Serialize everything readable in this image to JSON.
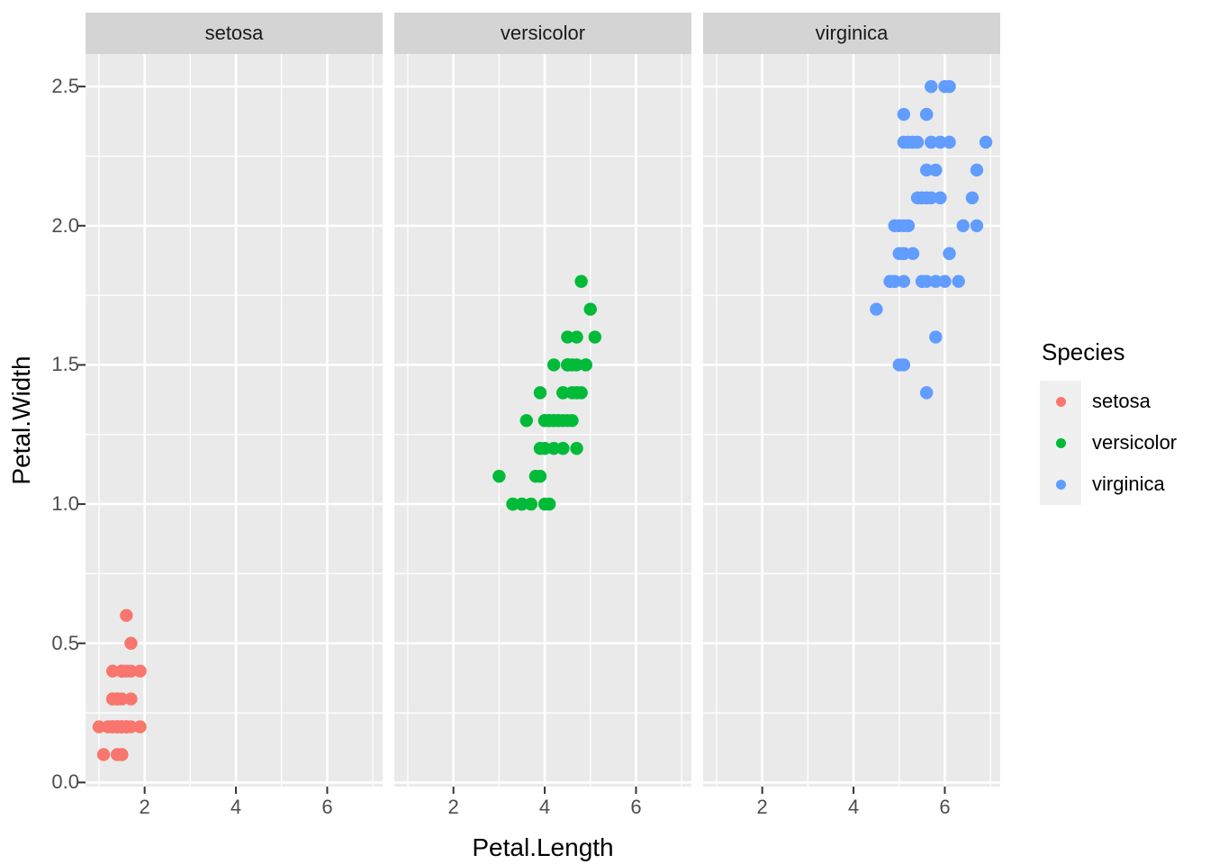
{
  "figure": {
    "background": "#FFFFFF",
    "panel_background": "#EAEAEA",
    "strip_background": "#D4D4D4",
    "gridline_color": "#FFFFFF",
    "axis_tick_color": "#333333",
    "tick_label_color": "#4D4D4D"
  },
  "chart_data": {
    "type": "scatter",
    "title": "",
    "xlabel": "Petal.Length",
    "ylabel": "Petal.Width",
    "facets": [
      "setosa",
      "versicolor",
      "virginica"
    ],
    "x_tick_values": [
      2,
      4,
      6
    ],
    "x_tick_labels": [
      "2",
      "4",
      "6"
    ],
    "x_minor_ticks": [
      1,
      3,
      5,
      7
    ],
    "y_tick_values": [
      0,
      0.5,
      1,
      1.5,
      2,
      2.5
    ],
    "y_tick_labels": [
      "0.0",
      "0.5",
      "1.0",
      "1.5",
      "2.0",
      "2.5"
    ],
    "y_minor_ticks": [
      0.25,
      0.75,
      1.25,
      1.75,
      2.25
    ],
    "x_range": [
      0.705,
      7.195
    ],
    "y_range": [
      -0.02,
      2.62
    ],
    "grid": true,
    "legend": {
      "title": "Species",
      "position": "right",
      "entries": [
        {
          "label": "setosa",
          "color": "#F8766D"
        },
        {
          "label": "versicolor",
          "color": "#00BA38"
        },
        {
          "label": "virginica",
          "color": "#619CFF"
        }
      ]
    },
    "series": [
      {
        "name": "setosa",
        "color": "#F8766D",
        "facet": "setosa",
        "points": [
          [
            1.4,
            0.2
          ],
          [
            1.4,
            0.2
          ],
          [
            1.3,
            0.2
          ],
          [
            1.5,
            0.2
          ],
          [
            1.4,
            0.2
          ],
          [
            1.7,
            0.4
          ],
          [
            1.4,
            0.3
          ],
          [
            1.5,
            0.2
          ],
          [
            1.4,
            0.2
          ],
          [
            1.5,
            0.1
          ],
          [
            1.5,
            0.2
          ],
          [
            1.6,
            0.2
          ],
          [
            1.4,
            0.1
          ],
          [
            1.1,
            0.1
          ],
          [
            1.2,
            0.2
          ],
          [
            1.5,
            0.4
          ],
          [
            1.3,
            0.4
          ],
          [
            1.4,
            0.3
          ],
          [
            1.7,
            0.3
          ],
          [
            1.5,
            0.3
          ],
          [
            1.7,
            0.2
          ],
          [
            1.5,
            0.4
          ],
          [
            1.0,
            0.2
          ],
          [
            1.7,
            0.5
          ],
          [
            1.9,
            0.2
          ],
          [
            1.6,
            0.2
          ],
          [
            1.6,
            0.4
          ],
          [
            1.5,
            0.2
          ],
          [
            1.4,
            0.2
          ],
          [
            1.6,
            0.2
          ],
          [
            1.6,
            0.2
          ],
          [
            1.5,
            0.4
          ],
          [
            1.5,
            0.1
          ],
          [
            1.4,
            0.2
          ],
          [
            1.5,
            0.2
          ],
          [
            1.2,
            0.2
          ],
          [
            1.3,
            0.2
          ],
          [
            1.4,
            0.1
          ],
          [
            1.3,
            0.2
          ],
          [
            1.5,
            0.2
          ],
          [
            1.3,
            0.3
          ],
          [
            1.3,
            0.3
          ],
          [
            1.3,
            0.2
          ],
          [
            1.6,
            0.6
          ],
          [
            1.9,
            0.4
          ],
          [
            1.4,
            0.3
          ],
          [
            1.6,
            0.2
          ],
          [
            1.4,
            0.2
          ],
          [
            1.5,
            0.2
          ],
          [
            1.4,
            0.2
          ]
        ]
      },
      {
        "name": "versicolor",
        "color": "#00BA38",
        "facet": "versicolor",
        "points": [
          [
            4.7,
            1.4
          ],
          [
            4.5,
            1.5
          ],
          [
            4.9,
            1.5
          ],
          [
            4.0,
            1.3
          ],
          [
            4.6,
            1.5
          ],
          [
            4.5,
            1.3
          ],
          [
            4.7,
            1.6
          ],
          [
            3.3,
            1.0
          ],
          [
            4.6,
            1.3
          ],
          [
            3.9,
            1.4
          ],
          [
            3.5,
            1.0
          ],
          [
            4.2,
            1.5
          ],
          [
            4.0,
            1.0
          ],
          [
            4.7,
            1.4
          ],
          [
            3.6,
            1.3
          ],
          [
            4.4,
            1.4
          ],
          [
            4.5,
            1.5
          ],
          [
            4.1,
            1.0
          ],
          [
            4.5,
            1.5
          ],
          [
            3.9,
            1.1
          ],
          [
            4.8,
            1.8
          ],
          [
            4.0,
            1.3
          ],
          [
            4.9,
            1.5
          ],
          [
            4.7,
            1.2
          ],
          [
            4.3,
            1.3
          ],
          [
            4.4,
            1.4
          ],
          [
            4.8,
            1.4
          ],
          [
            5.0,
            1.7
          ],
          [
            4.5,
            1.5
          ],
          [
            3.5,
            1.0
          ],
          [
            3.8,
            1.1
          ],
          [
            3.7,
            1.0
          ],
          [
            3.9,
            1.2
          ],
          [
            5.1,
            1.6
          ],
          [
            4.5,
            1.5
          ],
          [
            4.5,
            1.6
          ],
          [
            4.7,
            1.5
          ],
          [
            4.4,
            1.3
          ],
          [
            4.1,
            1.3
          ],
          [
            4.0,
            1.3
          ],
          [
            4.4,
            1.2
          ],
          [
            4.6,
            1.4
          ],
          [
            4.0,
            1.2
          ],
          [
            3.3,
            1.0
          ],
          [
            4.2,
            1.3
          ],
          [
            4.2,
            1.2
          ],
          [
            4.2,
            1.3
          ],
          [
            4.3,
            1.3
          ],
          [
            3.0,
            1.1
          ],
          [
            4.1,
            1.3
          ]
        ]
      },
      {
        "name": "virginica",
        "color": "#619CFF",
        "facet": "virginica",
        "points": [
          [
            6.0,
            2.5
          ],
          [
            5.1,
            1.9
          ],
          [
            5.9,
            2.1
          ],
          [
            5.6,
            1.8
          ],
          [
            5.8,
            2.2
          ],
          [
            6.6,
            2.1
          ],
          [
            4.5,
            1.7
          ],
          [
            6.3,
            1.8
          ],
          [
            5.8,
            1.8
          ],
          [
            6.1,
            2.5
          ],
          [
            5.1,
            2.0
          ],
          [
            5.3,
            1.9
          ],
          [
            5.5,
            2.1
          ],
          [
            5.0,
            2.0
          ],
          [
            5.1,
            2.4
          ],
          [
            5.3,
            2.3
          ],
          [
            5.5,
            1.8
          ],
          [
            6.7,
            2.2
          ],
          [
            6.9,
            2.3
          ],
          [
            5.0,
            1.5
          ],
          [
            5.7,
            2.3
          ],
          [
            4.9,
            2.0
          ],
          [
            6.7,
            2.0
          ],
          [
            4.9,
            1.8
          ],
          [
            5.7,
            2.1
          ],
          [
            6.0,
            1.8
          ],
          [
            4.8,
            1.8
          ],
          [
            4.9,
            1.8
          ],
          [
            5.6,
            2.1
          ],
          [
            5.8,
            1.6
          ],
          [
            6.1,
            1.9
          ],
          [
            6.4,
            2.0
          ],
          [
            5.6,
            2.2
          ],
          [
            5.1,
            1.5
          ],
          [
            5.6,
            1.4
          ],
          [
            6.1,
            2.3
          ],
          [
            5.6,
            2.4
          ],
          [
            5.5,
            1.8
          ],
          [
            4.8,
            1.8
          ],
          [
            5.4,
            2.1
          ],
          [
            5.6,
            2.4
          ],
          [
            5.1,
            2.3
          ],
          [
            5.1,
            1.9
          ],
          [
            5.9,
            2.3
          ],
          [
            5.7,
            2.5
          ],
          [
            5.2,
            2.3
          ],
          [
            5.0,
            1.9
          ],
          [
            5.2,
            2.0
          ],
          [
            5.4,
            2.3
          ],
          [
            5.1,
            1.8
          ]
        ]
      }
    ]
  }
}
